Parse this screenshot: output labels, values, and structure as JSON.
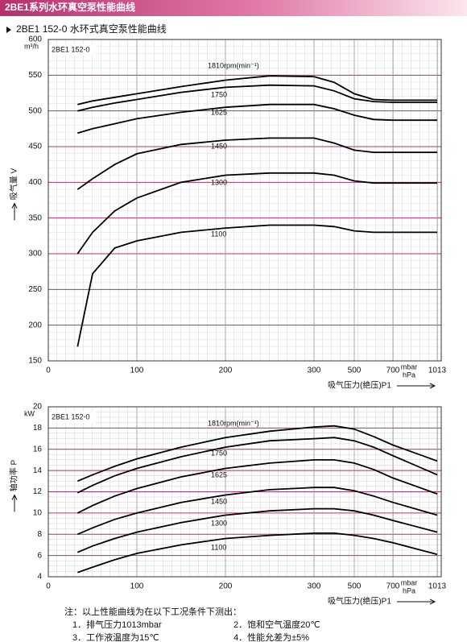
{
  "header": {
    "title": "2BE1系列水环真空泵性能曲线",
    "subtitle": "2BE1 152-0 水环式真空泵性能曲线"
  },
  "chart_data": [
    {
      "type": "line",
      "label": "2BE1 152-0",
      "y_label": "吸气量 V",
      "y_unit": "m³/h",
      "x_label": "吸气压力(绝压)P1",
      "x_unit": [
        "mbar",
        "hPa"
      ],
      "x": [
        33,
        50,
        75,
        100,
        150,
        200,
        250,
        300,
        400,
        500,
        600,
        700,
        1013
      ],
      "xlim": [
        0,
        1013
      ],
      "xticks": [
        0,
        100,
        200,
        300,
        500,
        700,
        1013
      ],
      "ylim": [
        150,
        600
      ],
      "yticks": [
        150,
        200,
        250,
        300,
        350,
        400,
        450,
        500,
        550,
        600
      ],
      "grid": true,
      "series": [
        {
          "name": "1810rpm(min⁻¹)",
          "color": "#000000",
          "values": [
            509,
            514,
            519,
            524,
            534,
            543,
            549,
            548,
            540,
            524,
            516,
            515,
            515
          ]
        },
        {
          "name": "1750",
          "color": "#000000",
          "values": [
            500,
            505,
            511,
            516,
            526,
            533,
            536,
            535,
            528,
            517,
            513,
            512,
            512
          ]
        },
        {
          "name": "1625",
          "color": "#000000",
          "values": [
            469,
            475,
            482,
            489,
            498,
            505,
            509,
            509,
            503,
            494,
            488,
            487,
            487
          ]
        },
        {
          "name": "1450",
          "color": "#000000",
          "values": [
            390,
            405,
            425,
            440,
            453,
            459,
            462,
            462,
            455,
            445,
            442,
            442,
            442
          ]
        },
        {
          "name": "1300",
          "color": "#000000",
          "values": [
            300,
            330,
            360,
            378,
            400,
            410,
            413,
            413,
            410,
            402,
            399,
            399,
            399
          ]
        },
        {
          "name": "1100",
          "color": "#000000",
          "values": [
            170,
            272,
            308,
            318,
            330,
            336,
            340,
            340,
            338,
            332,
            330,
            330,
            330
          ]
        }
      ]
    },
    {
      "type": "line",
      "label": "2BE1 152-0",
      "y_label": "轴功率 P",
      "y_unit": "kW",
      "x_label": "吸气压力(绝压)P1",
      "x_unit": [
        "mbar",
        "hPa"
      ],
      "x": [
        33,
        50,
        75,
        100,
        150,
        200,
        250,
        300,
        400,
        500,
        600,
        700,
        1013
      ],
      "xlim": [
        0,
        1013
      ],
      "xticks": [
        0,
        100,
        200,
        300,
        500,
        700,
        1013
      ],
      "ylim": [
        4,
        20
      ],
      "yticks": [
        4,
        6,
        8,
        10,
        12,
        14,
        16,
        18,
        20
      ],
      "grid": true,
      "series": [
        {
          "name": "1810rpm(min⁻¹)",
          "color": "#000000",
          "values": [
            13,
            13.6,
            14.4,
            15.1,
            16.2,
            17.1,
            17.7,
            18.1,
            18.2,
            17.9,
            17.2,
            16.4,
            14.9
          ]
        },
        {
          "name": "1750",
          "color": "#000000",
          "values": [
            11.9,
            12.6,
            13.5,
            14.2,
            15.3,
            16.2,
            16.8,
            17,
            17.1,
            16.8,
            16.2,
            15.4,
            13.6
          ]
        },
        {
          "name": "1625",
          "color": "#000000",
          "values": [
            10,
            10.7,
            11.6,
            12.3,
            13.4,
            14.2,
            14.7,
            15,
            15,
            14.7,
            14.1,
            13.3,
            11.8
          ]
        },
        {
          "name": "1450",
          "color": "#000000",
          "values": [
            8,
            8.6,
            9.4,
            10,
            11,
            11.7,
            12.2,
            12.4,
            12.4,
            12.1,
            11.6,
            11,
            9.8
          ]
        },
        {
          "name": "1300",
          "color": "#000000",
          "values": [
            6.3,
            6.9,
            7.6,
            8.2,
            9.1,
            9.8,
            10.2,
            10.4,
            10.4,
            10.2,
            9.8,
            9.3,
            8.2
          ]
        },
        {
          "name": "1100",
          "color": "#000000",
          "values": [
            4.4,
            4.9,
            5.6,
            6.2,
            7,
            7.6,
            7.9,
            8.1,
            8.1,
            7.9,
            7.6,
            7.2,
            6.1
          ]
        }
      ]
    }
  ],
  "notes": {
    "title": "注：以上性能曲线为在以下工况条件下测出：",
    "items": [
      "1．排气压力1013mbar",
      "2．饱和空气温度20℃",
      "3．工作液温度为15℃",
      "4．性能允差为±5%"
    ]
  }
}
